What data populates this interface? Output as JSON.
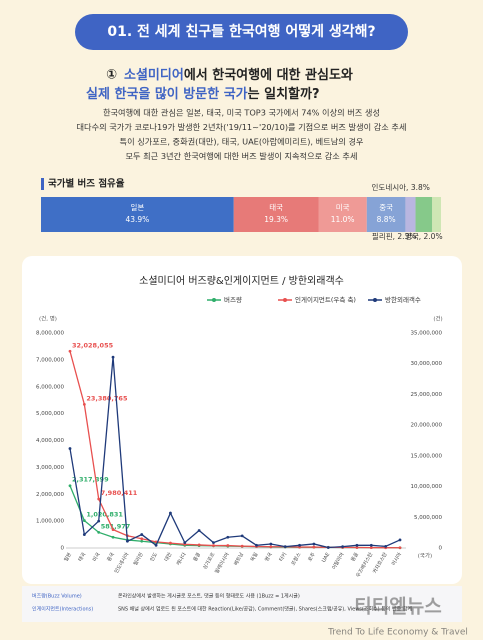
{
  "header": {
    "title": "01. 전 세계 친구들 한국여행 어떻게 생각해?"
  },
  "subheading": {
    "number": "①",
    "lines": [
      [
        {
          "text": "소셜미디어",
          "highlight": true
        },
        {
          "text": "에서 한국여행에 대한 관심도와",
          "highlight": false
        }
      ],
      [
        {
          "text": "실제 한국을 많이 방문한 국가",
          "highlight": true
        },
        {
          "text": "는 일치할까?",
          "highlight": false
        }
      ]
    ]
  },
  "paragraph": [
    "한국여행에 대한 관심은 일본, 태국, 미국 TOP3 국가에서 74% 이상의 버즈 생성",
    "대다수의 국가가 코로나19가 발생한 2년차('19/11~'20/10)를 기점으로 버즈 발생이 감소 추세",
    "특이 싱가포르, 중화권(대만), 태국, UAE(아랍에미리트), 베트남의 경우",
    "모두 최근 3년간 한국여행에 대한 버즈 발생이 지속적으로 감소 추세"
  ],
  "chart_data": [
    {
      "type": "stacked_share_bar",
      "title": "국가별 버즈 점유율",
      "categories": [
        "일본",
        "태국",
        "미국",
        "중국",
        "필리핀",
        "인도네시아",
        "영국"
      ],
      "values": [
        43.9,
        19.3,
        11.0,
        8.8,
        2.3,
        3.8,
        2.0
      ],
      "value_labels": [
        "43.9%",
        "19.3%",
        "11.0%",
        "8.8%",
        "2.3%",
        "3.8%",
        "2.0%"
      ],
      "colors": [
        "#3f6fc6",
        "#e77a78",
        "#ef9a96",
        "#86a3d6",
        "#b9b6e0",
        "#86c98a",
        "#cfe6b4"
      ]
    },
    {
      "type": "line",
      "title": "소셜미디어 버즈량&인게이지먼트 / 방한외래객수",
      "y_label": "(건, 명)",
      "y2_label": "(건)",
      "x_label": "(국가)",
      "categories": [
        "일본",
        "태국",
        "미국",
        "중국",
        "인도네시아",
        "필리핀",
        "인도",
        "대만",
        "캐나다",
        "홍콩",
        "싱가포르",
        "말레이시아",
        "베트남",
        "독일",
        "영국",
        "터키",
        "프랑스",
        "호주",
        "UAE",
        "이탈리아",
        "몽골",
        "우즈베키스탄",
        "카자흐스탄",
        "러시아"
      ],
      "series": [
        {
          "name": "버즈량",
          "color": "#2fae6a",
          "values": [
            2317399,
            1020831,
            581977,
            400000,
            300000,
            250000,
            200000,
            150000,
            100000,
            90000,
            80000,
            70000,
            60000,
            50000,
            40000,
            35000,
            30000,
            30000,
            25000,
            20000,
            20000,
            15000,
            15000,
            10000
          ],
          "value_labels": [
            "2,317,399",
            "1,020,831",
            "581,977",
            null,
            null,
            null,
            null,
            null,
            null,
            null,
            null,
            null,
            null,
            null,
            null,
            null,
            null,
            null,
            null,
            null,
            null,
            null,
            null,
            null
          ]
        },
        {
          "name": "인게이지먼트(우측 축)",
          "color": "#e8504f",
          "axis": "y2",
          "values": [
            32028055,
            23380765,
            7980411,
            3000000,
            2000000,
            1500000,
            1000000,
            800000,
            600000,
            500000,
            400000,
            400000,
            300000,
            250000,
            200000,
            200000,
            150000,
            150000,
            100000,
            100000,
            80000,
            60000,
            50000,
            40000
          ],
          "value_labels": [
            "32,028,055",
            "23,380,765",
            "7,980,411",
            null,
            null,
            null,
            null,
            null,
            null,
            null,
            null,
            null,
            null,
            null,
            null,
            null,
            null,
            null,
            null,
            null,
            null,
            null,
            null,
            null
          ]
        },
        {
          "name": "방한외래객수",
          "color": "#1f3a7a",
          "values": [
            3700000,
            500000,
            1000000,
            7100000,
            250000,
            500000,
            100000,
            1300000,
            200000,
            650000,
            200000,
            400000,
            450000,
            100000,
            150000,
            50000,
            100000,
            150000,
            20000,
            50000,
            100000,
            100000,
            60000,
            300000
          ]
        }
      ],
      "ylim": [
        0,
        8000000
      ],
      "yticks": [
        0,
        {
          "value": 1000000,
          "label": "1,000,000"
        },
        {
          "value": 2000000,
          "label": "2,000,000"
        },
        {
          "value": 3000000,
          "label": "3,000,000"
        },
        {
          "value": 4000000,
          "label": "4,000,000"
        },
        {
          "value": 5000000,
          "label": "5,000,000"
        },
        {
          "value": 6000000,
          "label": "6,000,000"
        },
        {
          "value": 7000000,
          "label": "7,000,000"
        },
        {
          "value": 8000000,
          "label": "8,000,000"
        }
      ],
      "y2lim": [
        0,
        35000000
      ],
      "y2ticks": [
        0,
        {
          "value": 5000000,
          "label": "5,000,000"
        },
        {
          "value": 10000000,
          "label": "10,000,000"
        },
        {
          "value": 15000000,
          "label": "15,000,000"
        },
        {
          "value": 20000000,
          "label": "20,000,000"
        },
        {
          "value": 25000000,
          "label": "25,000,000"
        },
        {
          "value": 30000000,
          "label": "30,000,000"
        },
        {
          "value": 35000000,
          "label": "35,000,000"
        }
      ],
      "legend": "top",
      "grid": false
    }
  ],
  "notes": [
    {
      "term": "버즈량(Buzz Volume)",
      "text": "온라인상에서 발생하는 게시글로 포스트, 댓글 등의 형태로도 사용 (1Buzz = 1게시글)"
    },
    {
      "term": "인게이지먼트(Interactions)",
      "text": "SNS 채널 상에서 업로드 된 포스트에 대한 Reaction(Like/공감), Comment(댓글), Shares(스크랩/공유), Views(조회수) 등의 반응 합계"
    }
  ],
  "watermark": {
    "title": "티티엘뉴스",
    "tagline": "Trend To Life Economy & Travel"
  }
}
